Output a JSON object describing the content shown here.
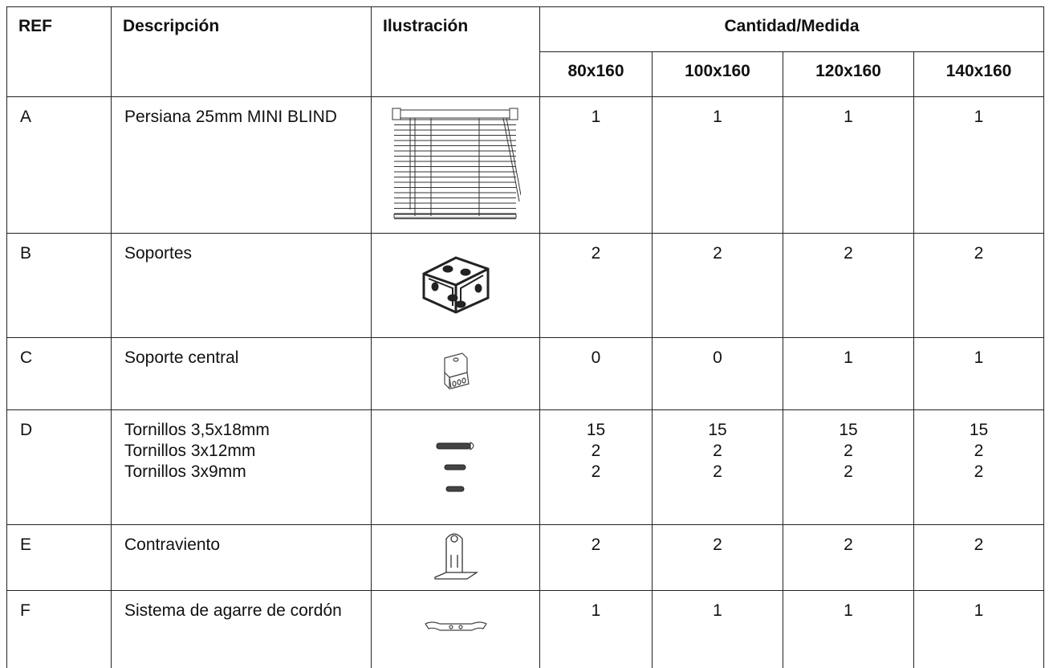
{
  "table": {
    "headers": {
      "ref": "REF",
      "description": "Descripción",
      "illustration": "Ilustración",
      "quantity": "Cantidad/Medida",
      "sizes": [
        "80x160",
        "100x160",
        "120x160",
        "140x160"
      ]
    },
    "rows": [
      {
        "ref": "A",
        "description": [
          "Persiana 25mm MINI BLIND"
        ],
        "quantities": [
          [
            1
          ],
          [
            1
          ],
          [
            1
          ],
          [
            1
          ]
        ]
      },
      {
        "ref": "B",
        "description": [
          "Soportes"
        ],
        "quantities": [
          [
            2
          ],
          [
            2
          ],
          [
            2
          ],
          [
            2
          ]
        ]
      },
      {
        "ref": "C",
        "description": [
          "Soporte central"
        ],
        "quantities": [
          [
            0
          ],
          [
            0
          ],
          [
            1
          ],
          [
            1
          ]
        ]
      },
      {
        "ref": "D",
        "description": [
          "Tornillos 3,5x18mm",
          "Tornillos 3x12mm",
          "Tornillos 3x9mm"
        ],
        "quantities": [
          [
            15,
            2,
            2
          ],
          [
            15,
            2,
            2
          ],
          [
            15,
            2,
            2
          ],
          [
            15,
            2,
            2
          ]
        ]
      },
      {
        "ref": "E",
        "description": [
          "Contraviento"
        ],
        "quantities": [
          [
            2
          ],
          [
            2
          ],
          [
            2
          ],
          [
            2
          ]
        ]
      },
      {
        "ref": "F",
        "description": [
          "Sistema de agarre de cordón"
        ],
        "quantities": [
          [
            1
          ],
          [
            1
          ],
          [
            1
          ],
          [
            1
          ]
        ]
      }
    ]
  }
}
